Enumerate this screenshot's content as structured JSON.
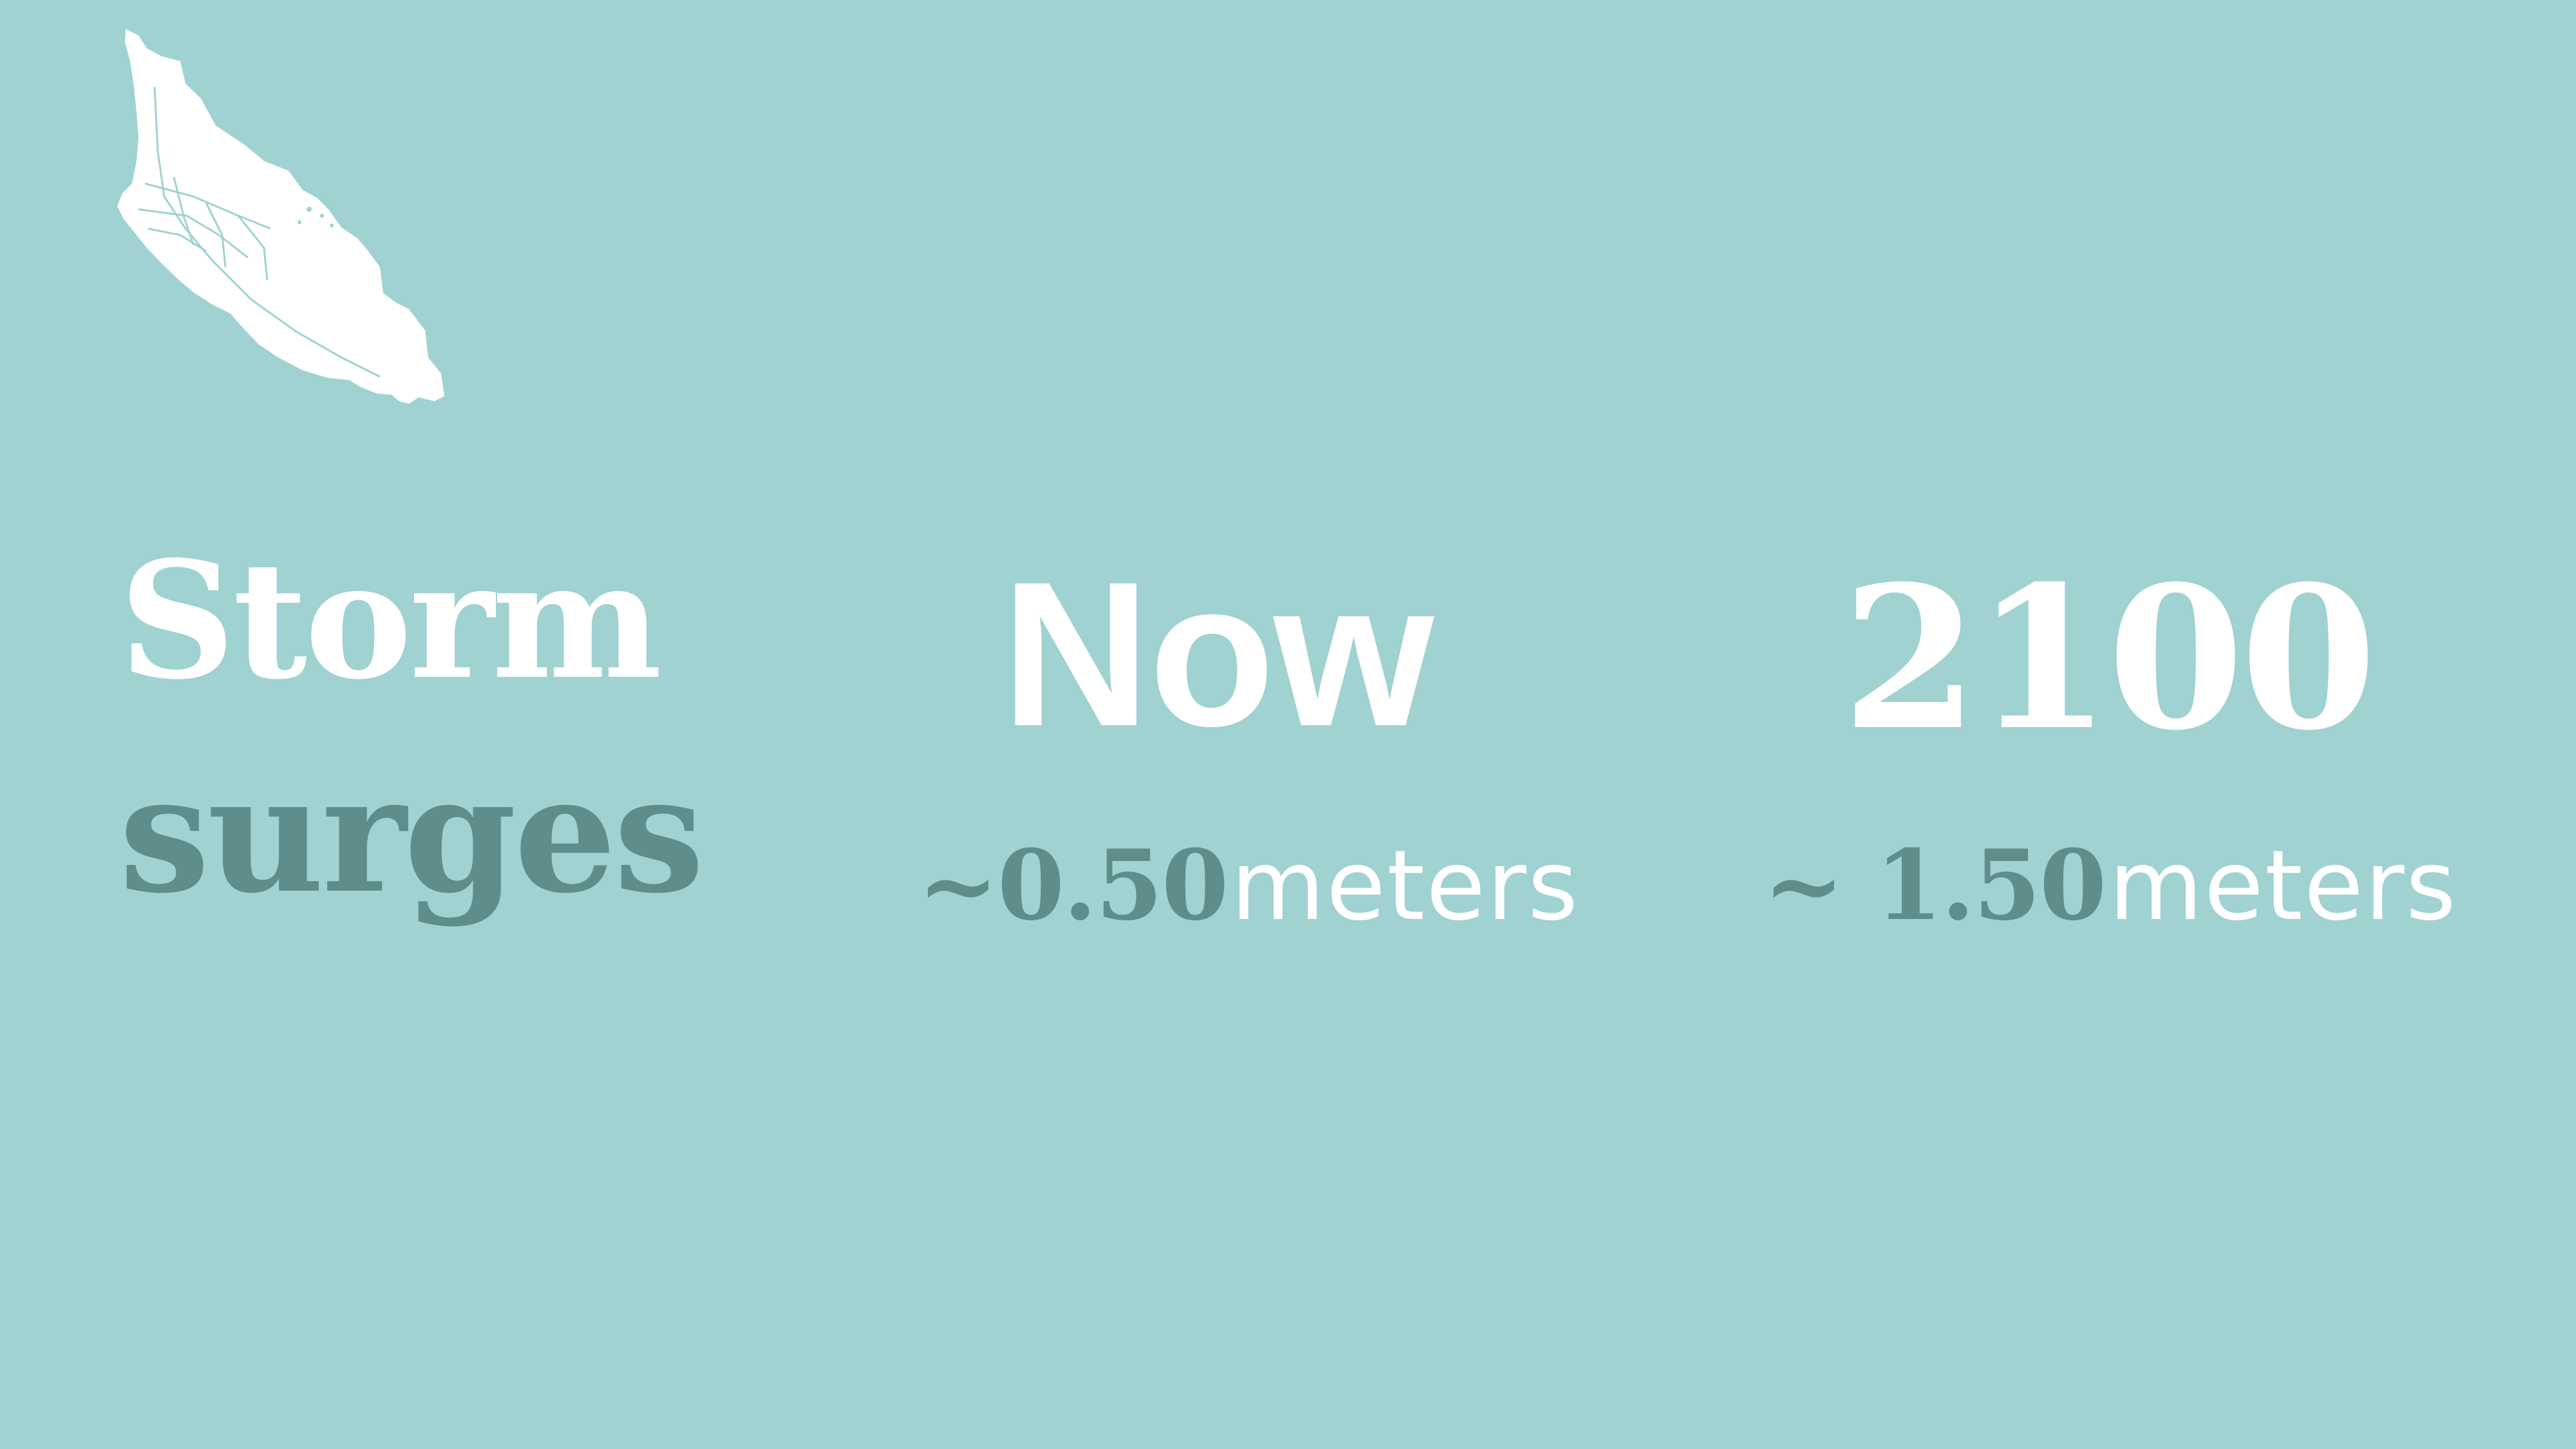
{
  "background_color": "#a0d2d1",
  "accent_color": "#5d8e8b",
  "icon": "island-map-icon",
  "title": {
    "line1": "Storm",
    "line2": "surges"
  },
  "columns": [
    {
      "heading": "Now",
      "value": "~0.50",
      "unit": "meters"
    },
    {
      "heading": "2100",
      "value": "~ 1.50",
      "unit": "meters"
    }
  ]
}
